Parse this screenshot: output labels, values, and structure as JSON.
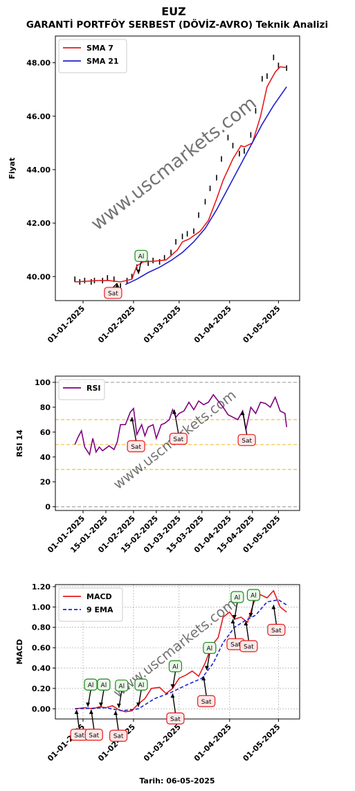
{
  "title": "EUZ",
  "subtitle": "GARANTİ PORTFÖY SERBEST (DÖVİZ-AVRO) Teknik Analizi",
  "watermark": "www.uscmarkets.com",
  "footer": "Tarih: 06-05-2025",
  "colors": {
    "sma7": "#e41a1c",
    "sma21": "#1f1fd0",
    "rsi": "#800080",
    "macd": "#e41a1c",
    "ema": "#1f1fd0",
    "buy": "#1a8a1a",
    "sell": "#e41a1c"
  },
  "chart_data": [
    {
      "type": "line",
      "ylabel": "Fiyat",
      "xlabel": "",
      "ylim": [
        39.1,
        49.0
      ],
      "xlim": [
        "2024-12-15",
        "2025-05-14"
      ],
      "yticks": [
        "40.00",
        "42.00",
        "44.00",
        "46.00",
        "48.00"
      ],
      "xticks": [
        "01-01-2025",
        "01-02-2025",
        "01-03-2025",
        "01-04-2025",
        "01-05-2025"
      ],
      "legend": "top-left",
      "grid": false,
      "series": [
        {
          "name": "SMA 7",
          "color": "#e41a1c",
          "x": [
            "2024-12-27",
            "2025-01-02",
            "2025-01-10",
            "2025-01-17",
            "2025-01-24",
            "2025-01-31",
            "2025-02-03",
            "2025-02-07",
            "2025-02-14",
            "2025-02-21",
            "2025-02-28",
            "2025-03-03",
            "2025-03-07",
            "2025-03-14",
            "2025-03-19",
            "2025-03-24",
            "2025-03-28",
            "2025-04-03",
            "2025-04-08",
            "2025-04-10",
            "2025-04-15",
            "2025-04-20",
            "2025-04-24",
            "2025-04-29",
            "2025-05-02",
            "2025-05-06"
          ],
          "values": [
            39.8,
            39.82,
            39.85,
            39.85,
            39.8,
            39.9,
            40.4,
            40.55,
            40.58,
            40.62,
            41.0,
            41.3,
            41.4,
            41.7,
            42.1,
            42.9,
            43.6,
            44.4,
            44.9,
            44.85,
            45.0,
            46.0,
            47.1,
            47.65,
            47.85,
            47.82
          ]
        },
        {
          "name": "SMA 21",
          "color": "#1f1fd0",
          "x": [
            "2025-01-27",
            "2025-02-03",
            "2025-02-10",
            "2025-02-17",
            "2025-02-24",
            "2025-03-03",
            "2025-03-10",
            "2025-03-17",
            "2025-03-24",
            "2025-03-31",
            "2025-04-07",
            "2025-04-14",
            "2025-04-21",
            "2025-04-28",
            "2025-05-06"
          ],
          "values": [
            39.7,
            39.9,
            40.15,
            40.35,
            40.6,
            40.9,
            41.3,
            41.8,
            42.5,
            43.3,
            44.1,
            44.9,
            45.7,
            46.4,
            47.1
          ]
        }
      ],
      "price_bars": [
        [
          "2024-12-27",
          39.9
        ],
        [
          "2024-12-30",
          39.8
        ],
        [
          "2025-01-02",
          39.85
        ],
        [
          "2025-01-06",
          39.8
        ],
        [
          "2025-01-08",
          39.85
        ],
        [
          "2025-01-13",
          39.85
        ],
        [
          "2025-01-16",
          39.95
        ],
        [
          "2025-01-20",
          39.9
        ],
        [
          "2025-01-24",
          39.65
        ],
        [
          "2025-01-28",
          39.85
        ],
        [
          "2025-01-31",
          40.0
        ],
        [
          "2025-02-03",
          40.35
        ],
        [
          "2025-02-06",
          40.6
        ],
        [
          "2025-02-10",
          40.5
        ],
        [
          "2025-02-13",
          40.6
        ],
        [
          "2025-02-17",
          40.55
        ],
        [
          "2025-02-20",
          40.7
        ],
        [
          "2025-02-24",
          40.9
        ],
        [
          "2025-02-27",
          41.3
        ],
        [
          "2025-03-03",
          41.5
        ],
        [
          "2025-03-06",
          41.6
        ],
        [
          "2025-03-10",
          41.7
        ],
        [
          "2025-03-13",
          42.3
        ],
        [
          "2025-03-17",
          42.8
        ],
        [
          "2025-03-20",
          43.3
        ],
        [
          "2025-03-24",
          43.7
        ],
        [
          "2025-03-27",
          44.4
        ],
        [
          "2025-03-31",
          45.2
        ],
        [
          "2025-04-03",
          44.9
        ],
        [
          "2025-04-07",
          44.6
        ],
        [
          "2025-04-10",
          44.7
        ],
        [
          "2025-04-14",
          45.3
        ],
        [
          "2025-04-17",
          46.2
        ],
        [
          "2025-04-21",
          47.4
        ],
        [
          "2025-04-24",
          47.5
        ],
        [
          "2025-04-28",
          48.2
        ],
        [
          "2025-05-01",
          47.9
        ],
        [
          "2025-05-06",
          47.8
        ]
      ],
      "signals": [
        {
          "label": "Al",
          "kind": "buy",
          "x": "2025-02-04",
          "y": 40.1
        },
        {
          "label": "Sat",
          "kind": "sell",
          "x": "2025-01-22",
          "y": 39.75
        }
      ]
    },
    {
      "type": "line",
      "ylabel": "RSI 14",
      "xlabel": "",
      "ylim": [
        -3,
        105
      ],
      "xlim": [
        "2024-12-15",
        "2025-05-14"
      ],
      "yticks": [
        "0",
        "20",
        "40",
        "60",
        "80",
        "100"
      ],
      "xticks": [
        "01-01-2025",
        "15-01-2025",
        "01-02-2025",
        "15-02-2025",
        "01-03-2025",
        "15-03-2025",
        "01-04-2025",
        "15-04-2025",
        "01-05-2025"
      ],
      "hlines": [
        0,
        30,
        50,
        70,
        100
      ],
      "legend": "top-left",
      "grid": false,
      "series": [
        {
          "name": "RSI",
          "color": "#800080",
          "x": [
            "2024-12-27",
            "2024-12-29",
            "2024-12-31",
            "2025-01-02",
            "2025-01-05",
            "2025-01-07",
            "2025-01-09",
            "2025-01-11",
            "2025-01-13",
            "2025-01-15",
            "2025-01-17",
            "2025-01-20",
            "2025-01-22",
            "2025-01-24",
            "2025-01-27",
            "2025-01-30",
            "2025-02-01",
            "2025-02-03",
            "2025-02-06",
            "2025-02-08",
            "2025-02-10",
            "2025-02-13",
            "2025-02-15",
            "2025-02-18",
            "2025-02-20",
            "2025-02-23",
            "2025-02-25",
            "2025-02-27",
            "2025-03-01",
            "2025-03-04",
            "2025-03-07",
            "2025-03-10",
            "2025-03-13",
            "2025-03-16",
            "2025-03-19",
            "2025-03-22",
            "2025-03-25",
            "2025-03-28",
            "2025-03-31",
            "2025-04-03",
            "2025-04-06",
            "2025-04-09",
            "2025-04-11",
            "2025-04-14",
            "2025-04-17",
            "2025-04-20",
            "2025-04-23",
            "2025-04-26",
            "2025-04-29",
            "2025-05-02",
            "2025-05-05",
            "2025-05-06"
          ],
          "values": [
            50,
            56,
            61,
            48,
            42,
            55,
            44,
            48,
            45,
            47,
            49,
            46,
            52,
            66,
            66,
            76,
            79,
            58,
            66,
            57,
            64,
            66,
            55,
            66,
            67,
            70,
            78,
            72,
            75,
            77,
            84,
            78,
            85,
            82,
            84,
            90,
            85,
            80,
            74,
            72,
            70,
            77,
            62,
            80,
            75,
            84,
            83,
            80,
            88,
            77,
            75,
            64
          ]
        }
      ],
      "signals": [
        {
          "label": "Sat",
          "kind": "sell",
          "x": "2025-01-31",
          "y": 72
        },
        {
          "label": "Sat",
          "kind": "sell",
          "x": "2025-02-26",
          "y": 78
        },
        {
          "label": "Sat",
          "kind": "sell",
          "x": "2025-04-09",
          "y": 77
        }
      ]
    },
    {
      "type": "line",
      "ylabel": "MACD",
      "xlabel": "Tarih: 06-05-2025",
      "ylim": [
        -0.1,
        1.22
      ],
      "xlim": [
        "2024-12-15",
        "2025-05-14"
      ],
      "yticks": [
        "0.00",
        "0.20",
        "0.40",
        "0.60",
        "0.80",
        "1.00",
        "1.20"
      ],
      "xticks": [
        "01-01-2025",
        "01-02-2025",
        "01-03-2025",
        "01-04-2025",
        "01-05-2025"
      ],
      "legend": "top-left",
      "grid": true,
      "series": [
        {
          "name": "MACD",
          "color": "#e41a1c",
          "x": [
            "2024-12-27",
            "2025-01-02",
            "2025-01-07",
            "2025-01-11",
            "2025-01-15",
            "2025-01-19",
            "2025-01-23",
            "2025-01-27",
            "2025-01-31",
            "2025-02-04",
            "2025-02-08",
            "2025-02-12",
            "2025-02-17",
            "2025-02-21",
            "2025-02-25",
            "2025-03-01",
            "2025-03-05",
            "2025-03-09",
            "2025-03-13",
            "2025-03-17",
            "2025-03-21",
            "2025-03-25",
            "2025-03-28",
            "2025-04-01",
            "2025-04-04",
            "2025-04-08",
            "2025-04-12",
            "2025-04-16",
            "2025-04-20",
            "2025-04-24",
            "2025-04-28",
            "2025-05-02",
            "2025-05-06"
          ],
          "values": [
            0.0,
            0.01,
            0.0,
            0.02,
            0.01,
            0.03,
            -0.01,
            -0.03,
            -0.02,
            0.05,
            0.1,
            0.2,
            0.21,
            0.15,
            0.2,
            0.3,
            0.33,
            0.37,
            0.32,
            0.45,
            0.62,
            0.7,
            0.9,
            0.95,
            0.88,
            0.9,
            0.85,
            1.05,
            1.12,
            1.09,
            1.16,
            1.0,
            0.95
          ]
        },
        {
          "name": "9 EMA",
          "color": "#1f1fd0",
          "dashed": true,
          "x": [
            "2024-12-27",
            "2025-01-05",
            "2025-01-15",
            "2025-01-25",
            "2025-02-04",
            "2025-02-14",
            "2025-02-24",
            "2025-03-05",
            "2025-03-15",
            "2025-03-22",
            "2025-03-28",
            "2025-04-04",
            "2025-04-11",
            "2025-04-17",
            "2025-04-24",
            "2025-05-01",
            "2025-05-06"
          ],
          "values": [
            0.0,
            0.005,
            0.01,
            -0.02,
            0.0,
            0.1,
            0.16,
            0.23,
            0.3,
            0.45,
            0.65,
            0.8,
            0.87,
            0.92,
            1.05,
            1.07,
            1.02
          ]
        }
      ],
      "signals": [
        {
          "label": "Al",
          "kind": "buy",
          "x": "2025-01-04",
          "y": 0.02
        },
        {
          "label": "Al",
          "kind": "buy",
          "x": "2025-01-12",
          "y": 0.02
        },
        {
          "label": "Al",
          "kind": "buy",
          "x": "2025-01-23",
          "y": 0.01
        },
        {
          "label": "Al",
          "kind": "buy",
          "x": "2025-02-04",
          "y": 0.02
        },
        {
          "label": "Al",
          "kind": "buy",
          "x": "2025-02-25",
          "y": 0.2
        },
        {
          "label": "Al",
          "kind": "buy",
          "x": "2025-03-18",
          "y": 0.38
        },
        {
          "label": "Al",
          "kind": "buy",
          "x": "2025-04-04",
          "y": 0.88
        },
        {
          "label": "Al",
          "kind": "buy",
          "x": "2025-04-14",
          "y": 0.9
        },
        {
          "label": "Sat",
          "kind": "sell",
          "x": "2024-12-28",
          "y": -0.01
        },
        {
          "label": "Sat",
          "kind": "sell",
          "x": "2025-01-06",
          "y": -0.01
        },
        {
          "label": "Sat",
          "kind": "sell",
          "x": "2025-01-21",
          "y": -0.02
        },
        {
          "label": "Sat",
          "kind": "sell",
          "x": "2025-02-25",
          "y": 0.15
        },
        {
          "label": "Sat",
          "kind": "sell",
          "x": "2025-03-16",
          "y": 0.32
        },
        {
          "label": "Sat",
          "kind": "sell",
          "x": "2025-04-03",
          "y": 0.88
        },
        {
          "label": "Sat",
          "kind": "sell",
          "x": "2025-04-11",
          "y": 0.86
        },
        {
          "label": "Sat",
          "kind": "sell",
          "x": "2025-04-28",
          "y": 1.02
        }
      ]
    }
  ]
}
